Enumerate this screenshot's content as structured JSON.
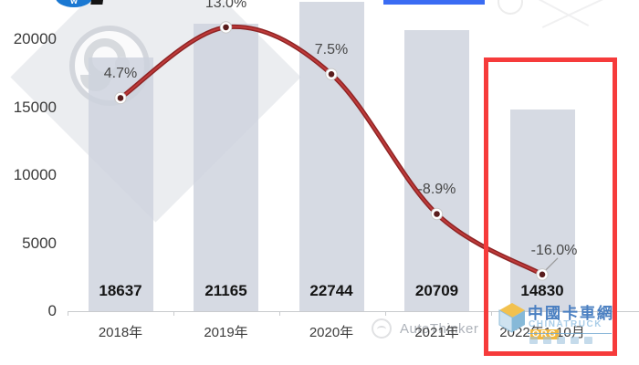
{
  "chart_data": {
    "type": "bar",
    "title": "",
    "xlabel": "",
    "ylabel": "",
    "categories": [
      "2018年",
      "2019年",
      "2020年",
      "2021年",
      "2022年1-10月"
    ],
    "series": [
      {
        "name": "sales-volume-bars",
        "type": "bar",
        "values": [
          18637,
          21165,
          22744,
          20709,
          14830
        ]
      },
      {
        "name": "yoy-growth-line",
        "type": "line",
        "values": [
          4.7,
          13.0,
          7.5,
          -8.9,
          -16.0
        ],
        "labels": [
          "4.7%",
          "13.0%",
          "7.5%",
          "-8.9%",
          "-16.0%"
        ]
      }
    ],
    "y_ticks": [
      0,
      5000,
      10000,
      15000,
      20000
    ],
    "ylim": [
      0,
      22900
    ],
    "secondary_ylim": [
      -20.3,
      16.2
    ],
    "grid": false,
    "legend_position": "none-cropped",
    "bar_color": "#cdd2dd",
    "line_color": "#a02c2c",
    "highlight_box_color": "#f63b3b",
    "highlight_category": "2022年1-10月"
  },
  "watermarks": {
    "autothinker_text": "AutoThinker"
  },
  "header": {
    "corner_logo_letter": "w",
    "top_bar_color": "#3a6cf3"
  },
  "footer_logo": {
    "title": "中國卡車網",
    "subtitle": "CHINATRUCK",
    "subtitle_suffix": "ORG",
    "title_color": "#4a7fc1",
    "suffix_bg": "#f0b73f"
  }
}
